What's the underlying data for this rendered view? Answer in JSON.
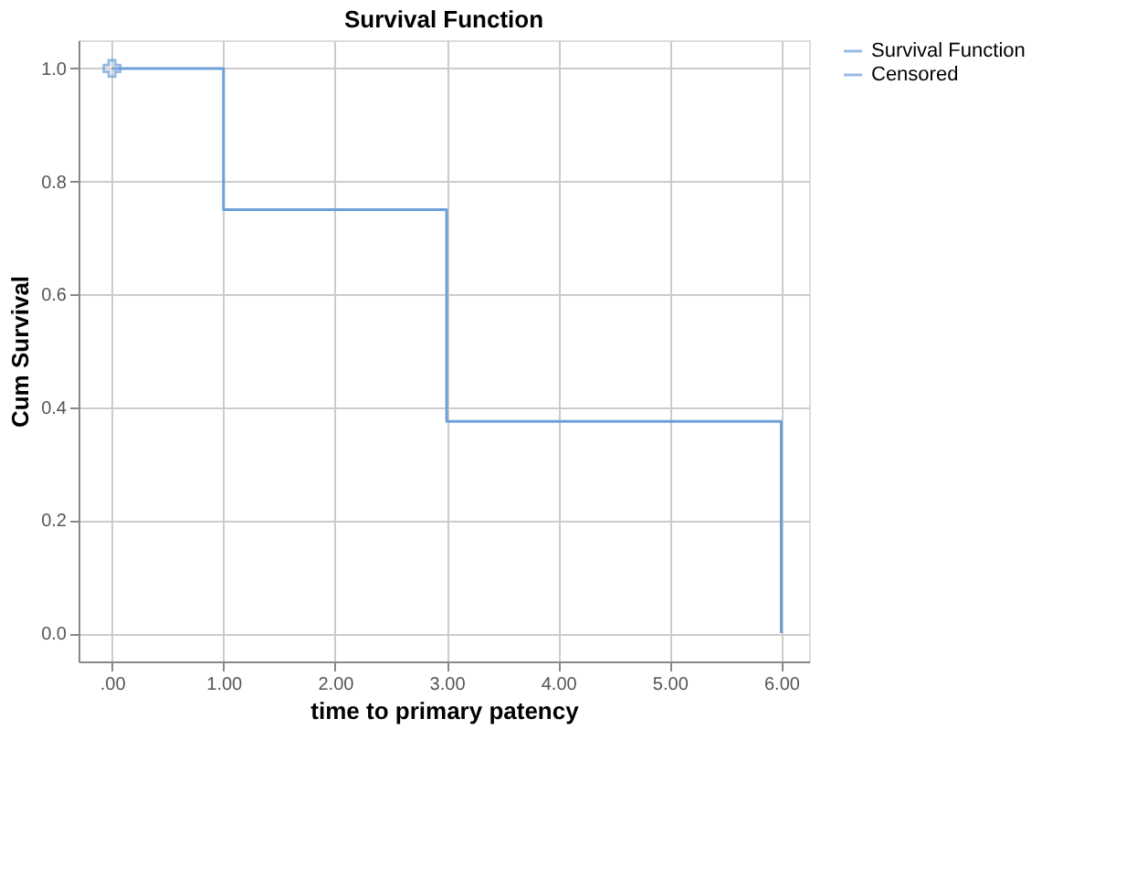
{
  "chart_data": {
    "type": "step",
    "title": "Survival Function",
    "xlabel": "time to primary patency",
    "ylabel": "Cum Survival",
    "series": [
      {
        "name": "Survival Function",
        "color": "#6f9fd8",
        "x": [
          0,
          1,
          3,
          6
        ],
        "values": [
          1.0,
          0.75,
          0.375,
          0.0
        ],
        "marker": "none"
      },
      {
        "name": "Censored",
        "type": "scatter",
        "color": "#6f9fd8",
        "x": [
          0
        ],
        "values": [
          1.0
        ],
        "marker": "cross"
      }
    ],
    "xlim": [
      -0.3,
      6.25
    ],
    "ylim": [
      -0.05,
      1.05
    ],
    "xticks": [
      {
        "value": 0,
        "label": ".00"
      },
      {
        "value": 1,
        "label": "1.00"
      },
      {
        "value": 2,
        "label": "2.00"
      },
      {
        "value": 3,
        "label": "3.00"
      },
      {
        "value": 4,
        "label": "4.00"
      },
      {
        "value": 5,
        "label": "5.00"
      },
      {
        "value": 6,
        "label": "6.00"
      }
    ],
    "yticks": [
      {
        "value": 0,
        "label": "0.0"
      },
      {
        "value": 0.2,
        "label": "0.2"
      },
      {
        "value": 0.4,
        "label": "0.4"
      },
      {
        "value": 0.6,
        "label": "0.6"
      },
      {
        "value": 0.8,
        "label": "0.8"
      },
      {
        "value": 1.0,
        "label": "1.0"
      }
    ],
    "grid": true,
    "legend": "top right"
  }
}
